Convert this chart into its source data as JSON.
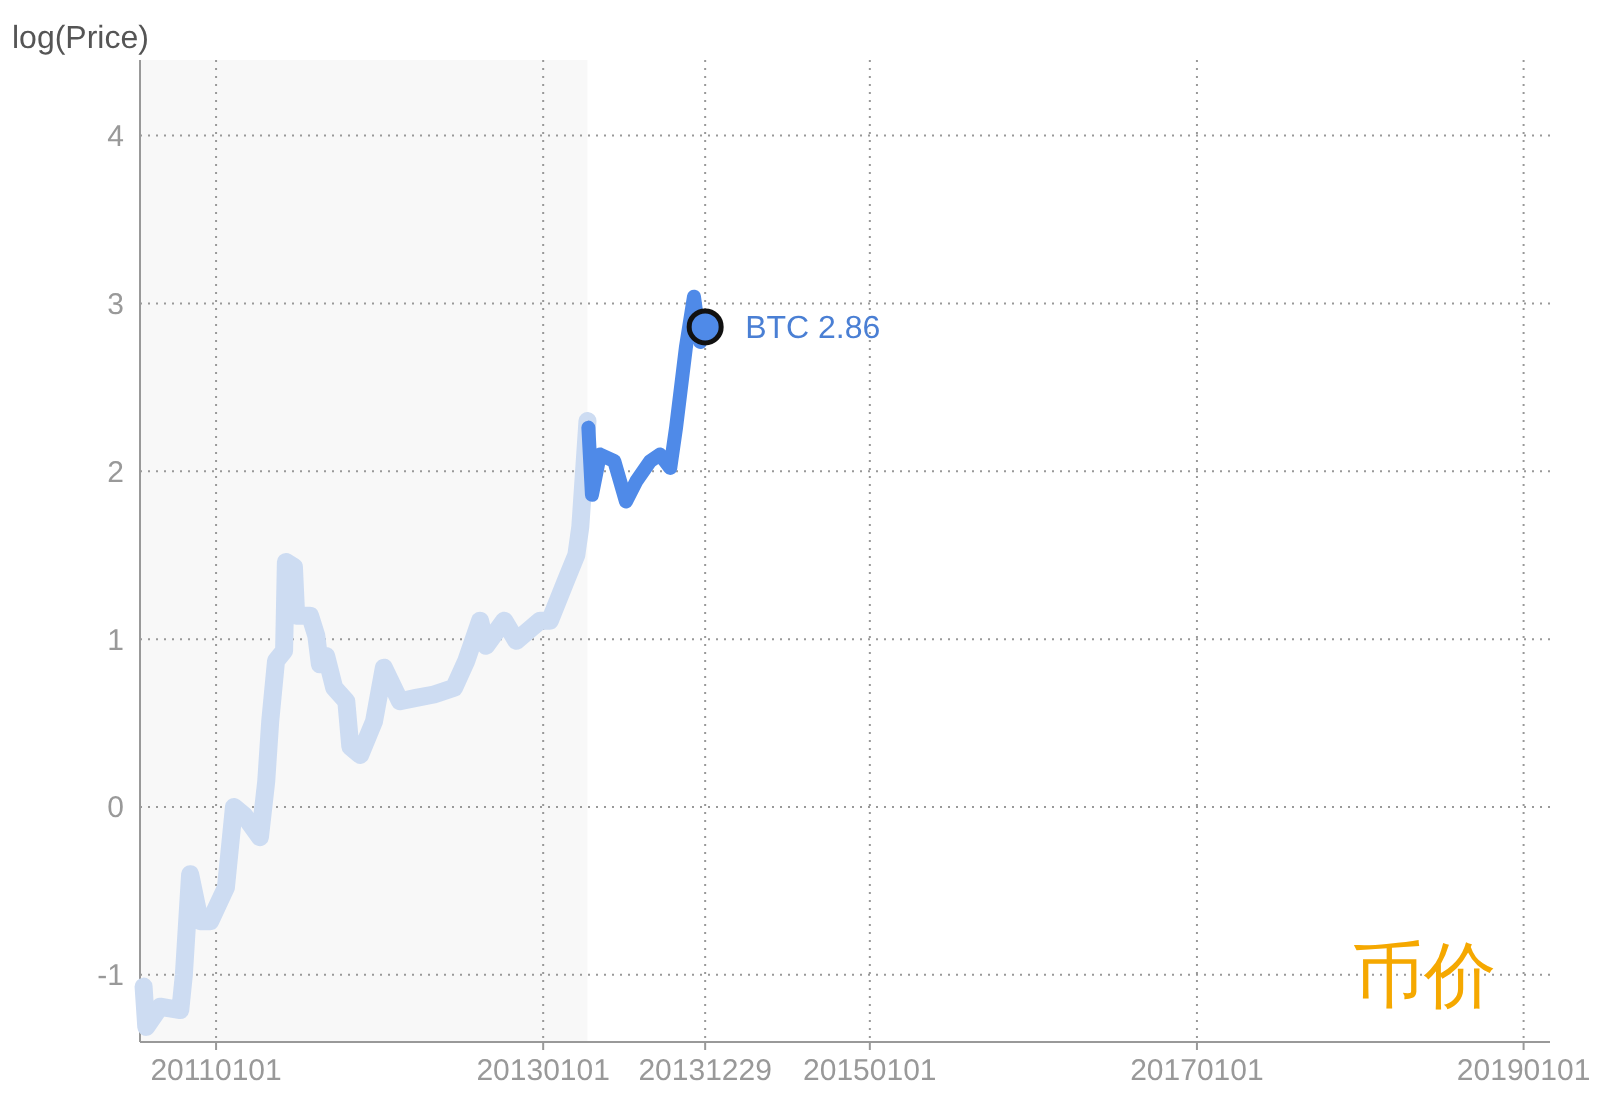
{
  "chart_data": {
    "type": "line",
    "ylabel": "log(Price)",
    "annotations": [
      {
        "text": "BTC 2.86",
        "x": "2013-12-29",
        "y": 2.86
      },
      "币价"
    ],
    "xlim": [
      "2010-07-15",
      "2019-03-01"
    ],
    "xticks": [
      {
        "value": "2011-01-01",
        "label": "20110101"
      },
      {
        "value": "2013-01-01",
        "label": "20130101"
      },
      {
        "value": "2013-12-29",
        "label": "20131229"
      },
      {
        "value": "2015-01-01",
        "label": "20150101"
      },
      {
        "value": "2017-01-01",
        "label": "20170101"
      },
      {
        "value": "2019-01-01",
        "label": "20190101"
      }
    ],
    "ylim": [
      -1.4,
      4.45
    ],
    "yticks": [
      -1,
      0,
      1,
      2,
      3,
      4
    ],
    "grid": true,
    "line_style": "solid",
    "bands": [
      {
        "axis": "x",
        "from": "2010-07-15",
        "to": "2013-04-10",
        "color": "#f8f8f8"
      }
    ],
    "series": [
      {
        "color": "#cddcf2",
        "x": [
          "2010-07-23",
          "2010-07-29",
          "2010-08-29",
          "2010-10-13",
          "2010-10-21",
          "2010-11-04",
          "2010-11-26",
          "2010-12-19",
          "2011-01-23",
          "2011-02-10",
          "2011-03-05",
          "2011-04-09",
          "2011-04-23",
          "2011-05-02",
          "2011-05-15",
          "2011-06-02",
          "2011-06-06",
          "2011-06-24",
          "2011-06-29",
          "2011-07-30",
          "2011-08-13",
          "2011-08-21",
          "2011-09-04",
          "2011-09-22",
          "2011-10-19",
          "2011-10-28",
          "2011-11-19",
          "2011-12-20",
          "2012-01-11",
          "2012-02-16",
          "2012-03-23",
          "2012-05-02",
          "2012-06-16",
          "2012-07-13",
          "2012-08-13",
          "2012-08-26",
          "2012-10-06",
          "2012-11-02",
          "2012-12-25",
          "2013-01-16",
          "2013-02-21",
          "2013-03-16",
          "2013-03-25",
          "2013-04-10"
        ],
        "values": [
          -1.07,
          -1.31,
          -1.19,
          -1.21,
          -1.0,
          -0.4,
          -0.68,
          -0.68,
          -0.48,
          0.0,
          -0.05,
          -0.18,
          0.15,
          0.51,
          0.87,
          0.93,
          1.46,
          1.43,
          1.14,
          1.14,
          1.02,
          0.85,
          0.9,
          0.71,
          0.63,
          0.36,
          0.31,
          0.51,
          0.83,
          0.63,
          0.65,
          0.67,
          0.71,
          0.87,
          1.11,
          0.96,
          1.11,
          0.99,
          1.11,
          1.11,
          1.35,
          1.5,
          1.67,
          2.3
        ]
      },
      {
        "color": "#4f8ae8",
        "x": [
          "2013-04-12",
          "2013-04-20",
          "2013-05-08",
          "2013-06-09",
          "2013-07-05",
          "2013-07-28",
          "2013-08-28",
          "2013-09-19",
          "2013-10-12",
          "2013-10-25",
          "2013-11-16",
          "2013-12-04",
          "2013-12-18",
          "2013-12-29"
        ],
        "values": [
          2.26,
          1.86,
          2.1,
          2.06,
          1.82,
          1.94,
          2.06,
          2.1,
          2.02,
          2.26,
          2.74,
          3.04,
          2.77,
          2.86
        ]
      },
      {
        "type": "scatter",
        "marker": "circle",
        "color": "#4f8ae8",
        "x": [
          "2013-12-29"
        ],
        "values": [
          2.86
        ]
      }
    ]
  }
}
